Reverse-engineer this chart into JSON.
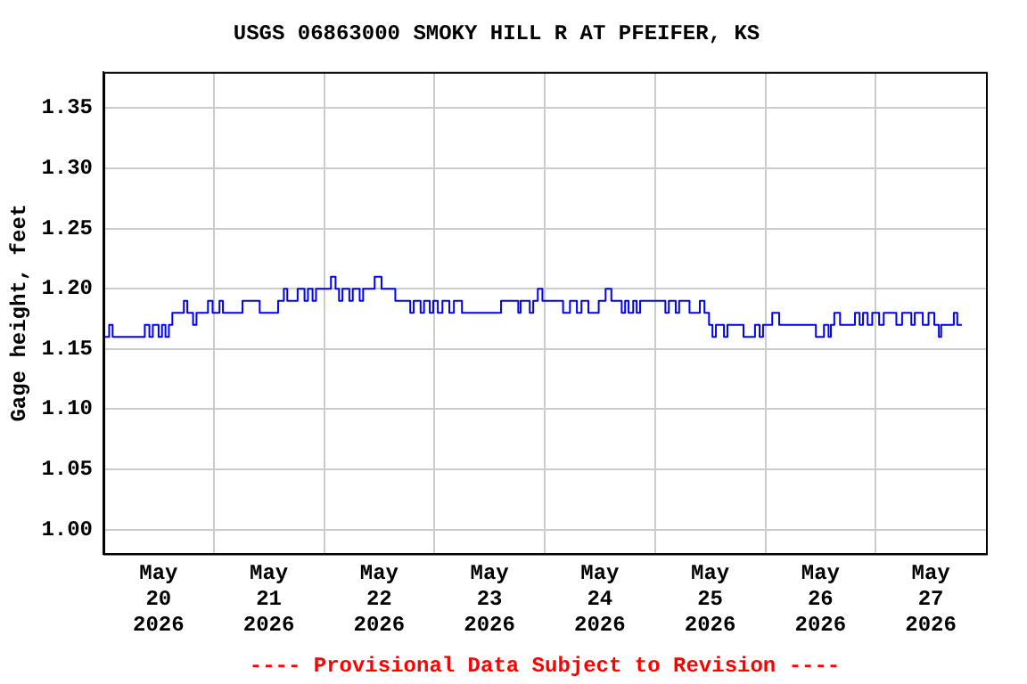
{
  "chart_data": {
    "type": "step",
    "title": "USGS 06863000 SMOKY HILL R AT PFEIFER, KS",
    "ylabel": "Gage height, feet",
    "annotations": [
      "---- Provisional Data Subject to Revision ----"
    ],
    "x": [
      "2026-05-20T00:00",
      "2026-05-20T01:15",
      "2026-05-20T02:00",
      "2026-05-20T09:00",
      "2026-05-20T10:00",
      "2026-05-20T10:45",
      "2026-05-20T12:00",
      "2026-05-20T12:45",
      "2026-05-20T13:30",
      "2026-05-20T14:15",
      "2026-05-20T15:00",
      "2026-05-20T17:30",
      "2026-05-20T18:15",
      "2026-05-20T19:30",
      "2026-05-20T20:15",
      "2026-05-20T22:45",
      "2026-05-20T23:45",
      "2026-05-21T01:15",
      "2026-05-21T02:00",
      "2026-05-21T06:15",
      "2026-05-21T10:00",
      "2026-05-21T14:00",
      "2026-05-21T15:15",
      "2026-05-21T16:00",
      "2026-05-21T18:15",
      "2026-05-21T19:45",
      "2026-05-21T20:30",
      "2026-05-21T21:30",
      "2026-05-21T22:15",
      "2026-05-22T01:30",
      "2026-05-22T02:30",
      "2026-05-22T03:15",
      "2026-05-22T04:00",
      "2026-05-22T05:30",
      "2026-05-22T06:15",
      "2026-05-22T07:45",
      "2026-05-22T08:30",
      "2026-05-22T11:00",
      "2026-05-22T12:30",
      "2026-05-22T15:30",
      "2026-05-22T18:45",
      "2026-05-22T19:30",
      "2026-05-22T21:00",
      "2026-05-22T21:45",
      "2026-05-22T23:00",
      "2026-05-22T23:45",
      "2026-05-23T00:45",
      "2026-05-23T01:45",
      "2026-05-23T03:15",
      "2026-05-23T04:15",
      "2026-05-23T06:00",
      "2026-05-23T14:30",
      "2026-05-23T18:15",
      "2026-05-23T18:45",
      "2026-05-23T20:45",
      "2026-05-23T21:30",
      "2026-05-23T22:30",
      "2026-05-23T23:30",
      "2026-05-24T04:00",
      "2026-05-24T05:30",
      "2026-05-24T07:00",
      "2026-05-24T08:00",
      "2026-05-24T09:30",
      "2026-05-24T11:45",
      "2026-05-24T13:15",
      "2026-05-24T14:30",
      "2026-05-24T16:45",
      "2026-05-24T17:30",
      "2026-05-24T18:15",
      "2026-05-24T19:15",
      "2026-05-24T20:00",
      "2026-05-24T20:45",
      "2026-05-25T02:15",
      "2026-05-25T03:00",
      "2026-05-25T04:30",
      "2026-05-25T05:15",
      "2026-05-25T06:45",
      "2026-05-25T07:30",
      "2026-05-25T09:45",
      "2026-05-25T10:45",
      "2026-05-25T11:45",
      "2026-05-25T12:30",
      "2026-05-25T13:15",
      "2026-05-25T15:00",
      "2026-05-25T15:45",
      "2026-05-25T19:15",
      "2026-05-25T21:45",
      "2026-05-25T22:45",
      "2026-05-25T23:30",
      "2026-05-26T01:30",
      "2026-05-26T03:00",
      "2026-05-26T11:00",
      "2026-05-26T12:45",
      "2026-05-26T13:45",
      "2026-05-26T14:15",
      "2026-05-26T15:00",
      "2026-05-26T16:15",
      "2026-05-26T19:30",
      "2026-05-26T20:30",
      "2026-05-26T21:15",
      "2026-05-26T22:15",
      "2026-05-26T23:15",
      "2026-05-27T00:45",
      "2026-05-27T01:45",
      "2026-05-27T04:30",
      "2026-05-27T05:45",
      "2026-05-27T07:45",
      "2026-05-27T08:30",
      "2026-05-27T10:15",
      "2026-05-27T11:30",
      "2026-05-27T12:45",
      "2026-05-27T13:45",
      "2026-05-27T14:15",
      "2026-05-27T17:00",
      "2026-05-27T17:45",
      "2026-05-27T18:45"
    ],
    "series": [
      {
        "color": "#0000ff",
        "values": [
          1.16,
          1.17,
          1.16,
          1.17,
          1.16,
          1.17,
          1.16,
          1.17,
          1.16,
          1.17,
          1.18,
          1.19,
          1.18,
          1.17,
          1.18,
          1.19,
          1.18,
          1.19,
          1.18,
          1.19,
          1.18,
          1.19,
          1.2,
          1.19,
          1.2,
          1.19,
          1.2,
          1.19,
          1.2,
          1.21,
          1.2,
          1.19,
          1.2,
          1.19,
          1.2,
          1.19,
          1.2,
          1.21,
          1.2,
          1.19,
          1.18,
          1.19,
          1.18,
          1.19,
          1.18,
          1.19,
          1.18,
          1.19,
          1.18,
          1.19,
          1.18,
          1.19,
          1.18,
          1.19,
          1.18,
          1.19,
          1.2,
          1.19,
          1.18,
          1.19,
          1.18,
          1.19,
          1.18,
          1.19,
          1.2,
          1.19,
          1.18,
          1.19,
          1.18,
          1.19,
          1.18,
          1.19,
          1.18,
          1.19,
          1.18,
          1.19,
          1.19,
          1.18,
          1.19,
          1.18,
          1.17,
          1.16,
          1.17,
          1.16,
          1.17,
          1.16,
          1.17,
          1.16,
          1.17,
          1.18,
          1.17,
          1.16,
          1.17,
          1.16,
          1.17,
          1.18,
          1.17,
          1.18,
          1.17,
          1.18,
          1.17,
          1.18,
          1.17,
          1.18,
          1.17,
          1.18,
          1.17,
          1.18,
          1.17,
          1.18,
          1.17,
          1.16,
          1.17,
          1.18,
          1.17,
          1.17
        ]
      }
    ],
    "xlim": [
      "2026-05-20",
      "2026-05-28"
    ],
    "xticks": [
      {
        "value": "2026-05-20T12:00",
        "label": "May 20 2026"
      },
      {
        "value": "2026-05-21",
        "label": null
      },
      {
        "value": "2026-05-21T12:00",
        "label": "May 21 2026"
      },
      {
        "value": "2026-05-22",
        "label": null
      },
      {
        "value": "2026-05-22T12:00",
        "label": "May 22 2026"
      },
      {
        "value": "2026-05-23",
        "label": null
      },
      {
        "value": "2026-05-23T12:00",
        "label": "May 23 2026"
      },
      {
        "value": "2026-05-24",
        "label": null
      },
      {
        "value": "2026-05-24T12:00",
        "label": "May 24 2026"
      },
      {
        "value": "2026-05-25",
        "label": null
      },
      {
        "value": "2026-05-25T12:00",
        "label": "May 25 2026"
      },
      {
        "value": "2026-05-26",
        "label": null
      },
      {
        "value": "2026-05-26T12:00",
        "label": "May 26 2026"
      },
      {
        "value": "2026-05-27",
        "label": null
      },
      {
        "value": "2026-05-27T12:00",
        "label": "May 27 2026"
      }
    ],
    "ylim": [
      0.98,
      1.38
    ],
    "yticks": [
      {
        "value": 1.0,
        "label": "1.00"
      },
      {
        "value": 1.05,
        "label": "1.05"
      },
      {
        "value": 1.1,
        "label": "1.10"
      },
      {
        "value": 1.15,
        "label": "1.15"
      },
      {
        "value": 1.2,
        "label": "1.20"
      },
      {
        "value": 1.25,
        "label": "1.25"
      },
      {
        "value": 1.3,
        "label": "1.30"
      },
      {
        "value": 1.35,
        "label": "1.35"
      }
    ],
    "grid": true,
    "legend": false,
    "line_style": "solid",
    "marker": "none"
  }
}
